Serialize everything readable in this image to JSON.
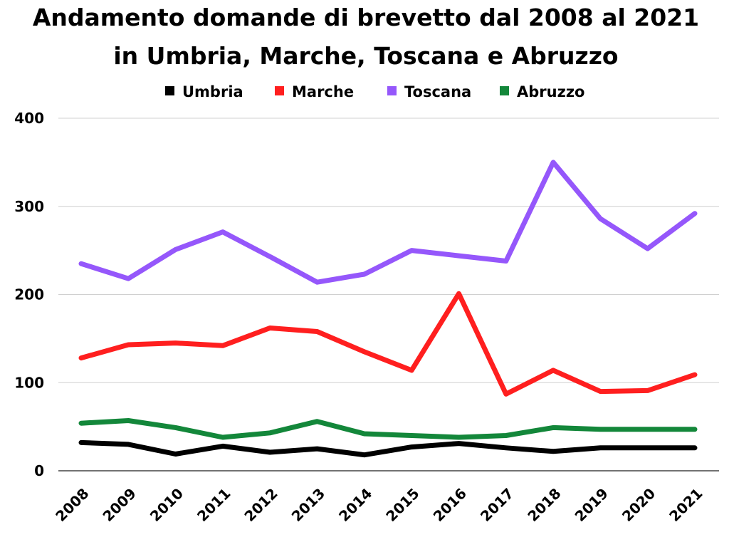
{
  "chart_data": {
    "type": "line",
    "title_line1": "Andamento domande di brevetto dal 2008 al 2021",
    "title_line2": "in Umbria, Marche, Toscana e Abruzzo",
    "xlabel": "",
    "ylabel": "",
    "ylim": [
      0,
      400
    ],
    "yticks": [
      "0",
      "100",
      "200",
      "300",
      "400"
    ],
    "grid": "horizontal",
    "legend_position": "top",
    "categories": [
      "2008",
      "2009",
      "2010",
      "2011",
      "2012",
      "2013",
      "2014",
      "2015",
      "2016",
      "2017",
      "2018",
      "2019",
      "2020",
      "2021"
    ],
    "series": [
      {
        "name": "Umbria",
        "color": "#000000",
        "values": [
          32,
          30,
          19,
          28,
          21,
          25,
          18,
          27,
          31,
          26,
          22,
          26,
          26,
          26
        ]
      },
      {
        "name": "Marche",
        "color": "#ff1f1f",
        "values": [
          128,
          143,
          145,
          142,
          162,
          158,
          135,
          114,
          201,
          87,
          114,
          90,
          91,
          109
        ]
      },
      {
        "name": "Toscana",
        "color": "#9557fb",
        "values": [
          235,
          218,
          251,
          271,
          243,
          214,
          223,
          250,
          244,
          238,
          350,
          286,
          252,
          292
        ]
      },
      {
        "name": "Abruzzo",
        "color": "#13873a",
        "values": [
          54,
          57,
          49,
          38,
          43,
          56,
          42,
          40,
          38,
          40,
          49,
          47,
          47,
          47
        ]
      }
    ]
  }
}
